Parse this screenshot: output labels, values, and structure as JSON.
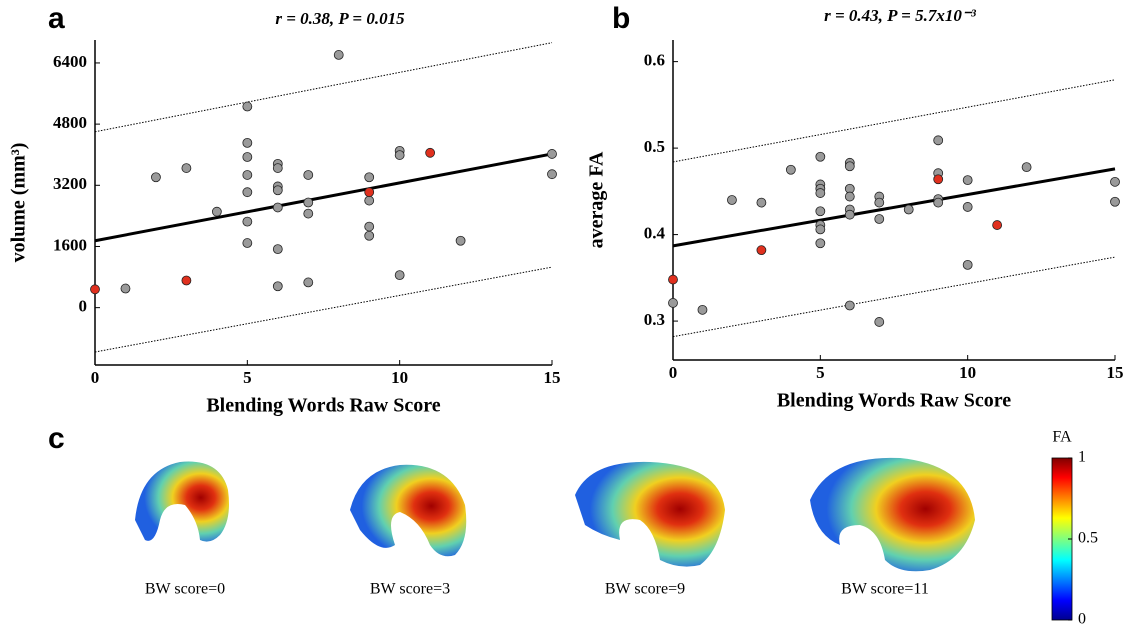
{
  "panel_labels": [
    "a",
    "b",
    "c"
  ],
  "chart_data": [
    {
      "type": "scatter",
      "title": "r = 0.38, P = 0.015",
      "xlabel": "Blending Words Raw Score",
      "ylabel": "volume (mm³)",
      "xlim": [
        0,
        15
      ],
      "ylim": [
        -1500,
        7000
      ],
      "xticks": [
        0,
        5,
        10,
        15
      ],
      "yticks": [
        0,
        1600,
        3200,
        4800,
        6400
      ],
      "series": [
        {
          "color": "#9a9a9a",
          "x": [
            1,
            2,
            3,
            4,
            5,
            5,
            5,
            5,
            5,
            5,
            5,
            6,
            6,
            6,
            6,
            6,
            6,
            6,
            7,
            7,
            7,
            7,
            8,
            9,
            9,
            9,
            9,
            10,
            10,
            10,
            12,
            15,
            15
          ],
          "values": [
            500,
            3410,
            3650,
            2510,
            5260,
            4310,
            3940,
            3470,
            3020,
            2250,
            1690,
            3760,
            3650,
            3170,
            3070,
            2620,
            1530,
            560,
            3470,
            2750,
            2460,
            660,
            6610,
            3410,
            2800,
            2120,
            1880,
            4100,
            3990,
            850,
            1750,
            4020,
            3490
          ]
        },
        {
          "color": "#e0301e",
          "x": [
            0,
            3,
            9,
            11
          ],
          "values": [
            480,
            710,
            3020,
            4050
          ]
        }
      ],
      "fit": {
        "x": [
          0,
          15
        ],
        "values": [
          1750,
          4020
        ]
      },
      "bounds": [
        {
          "x": [
            0,
            15
          ],
          "values": [
            4600,
            6930
          ]
        },
        {
          "x": [
            0,
            15
          ],
          "values": [
            -1160,
            1060
          ]
        }
      ]
    },
    {
      "type": "scatter",
      "title": "r = 0.43, P = 5.7x10⁻³",
      "xlabel": "Blending Words Raw Score",
      "ylabel": "average FA",
      "xlim": [
        0,
        15
      ],
      "ylim": [
        0.255,
        0.625
      ],
      "xticks": [
        0,
        5,
        10,
        15
      ],
      "yticks": [
        0.3,
        0.4,
        0.5,
        0.6
      ],
      "series": [
        {
          "color": "#9a9a9a",
          "x": [
            0,
            1,
            2,
            3,
            4,
            5,
            5,
            5,
            5,
            5,
            5,
            5,
            5,
            6,
            6,
            6,
            6,
            6,
            6,
            6,
            7,
            7,
            7,
            7,
            8,
            9,
            9,
            9,
            9,
            10,
            10,
            10,
            12,
            15,
            15
          ],
          "values": [
            0.321,
            0.313,
            0.44,
            0.437,
            0.475,
            0.49,
            0.458,
            0.453,
            0.448,
            0.427,
            0.411,
            0.406,
            0.39,
            0.483,
            0.479,
            0.453,
            0.444,
            0.429,
            0.423,
            0.318,
            0.444,
            0.437,
            0.418,
            0.299,
            0.429,
            0.509,
            0.471,
            0.441,
            0.437,
            0.463,
            0.432,
            0.365,
            0.478,
            0.461,
            0.438
          ]
        },
        {
          "color": "#e0301e",
          "x": [
            0,
            3,
            9,
            11
          ],
          "values": [
            0.348,
            0.382,
            0.464,
            0.411
          ]
        }
      ],
      "fit": {
        "x": [
          0,
          15
        ],
        "values": [
          0.387,
          0.476
        ]
      },
      "bounds": [
        {
          "x": [
            0,
            15
          ],
          "values": [
            0.484,
            0.579
          ]
        },
        {
          "x": [
            0,
            15
          ],
          "values": [
            0.282,
            0.374
          ]
        }
      ]
    }
  ],
  "brain_figure": {
    "labels": [
      "BW score=0",
      "BW score=3",
      "BW score=9",
      "BW score=11"
    ],
    "colorbar": {
      "title": "FA",
      "lim": [
        0,
        1
      ],
      "ticks": [
        0,
        0.5,
        1
      ]
    }
  }
}
